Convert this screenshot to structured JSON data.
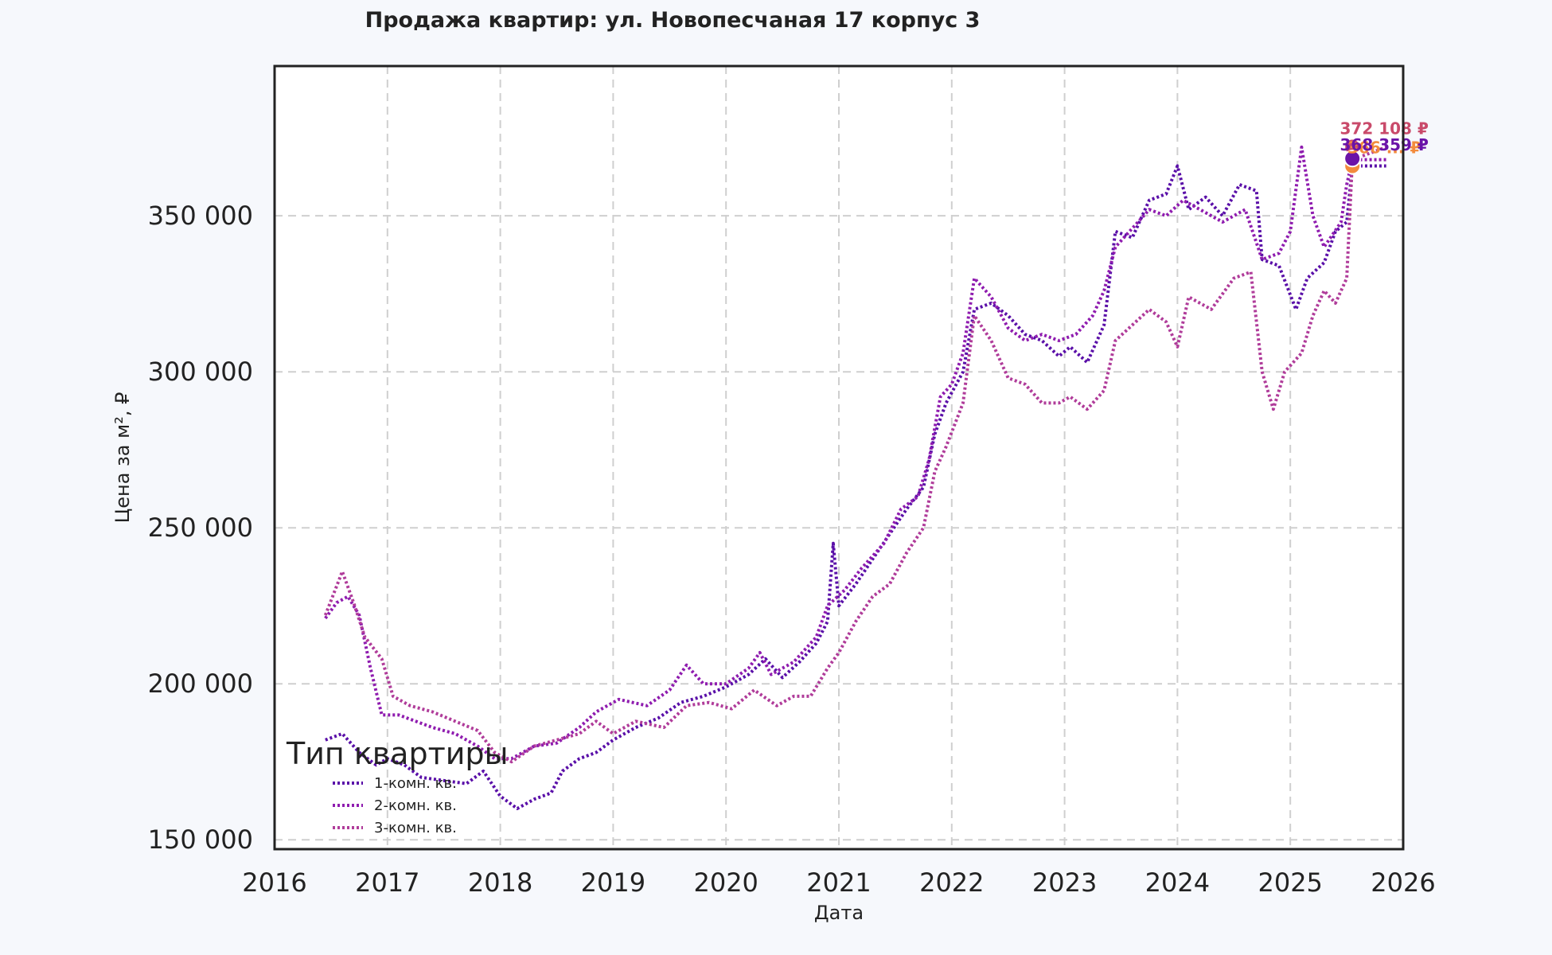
{
  "chart_data": {
    "type": "line",
    "title": "Продажа квартир: ул. Новопесчаная 17 корпус 3",
    "xlabel": "Дата",
    "ylabel": "Цена за м², ₽",
    "xlim": [
      2016,
      2026
    ],
    "ylim": [
      147000,
      398000
    ],
    "x_ticks": [
      "2016",
      "2017",
      "2018",
      "2019",
      "2020",
      "2021",
      "2022",
      "2023",
      "2024",
      "2025",
      "2026"
    ],
    "y_ticks": [
      {
        "value": 150000,
        "label": "150 000"
      },
      {
        "value": 200000,
        "label": "200 000"
      },
      {
        "value": 250000,
        "label": "250 000"
      },
      {
        "value": 300000,
        "label": "300 000"
      },
      {
        "value": 350000,
        "label": "350 000"
      }
    ],
    "grid": true,
    "legend": {
      "title": "Тип квартиры",
      "position": "lower-left"
    },
    "series": [
      {
        "name": "1-комн. кв.",
        "color": "#5a0fa8",
        "points": [
          [
            2016.45,
            182000
          ],
          [
            2016.6,
            184000
          ],
          [
            2016.75,
            178000
          ],
          [
            2016.9,
            174000
          ],
          [
            2017.0,
            176000
          ],
          [
            2017.15,
            174000
          ],
          [
            2017.3,
            170000
          ],
          [
            2017.5,
            169000
          ],
          [
            2017.7,
            168000
          ],
          [
            2017.85,
            172000
          ],
          [
            2018.0,
            164000
          ],
          [
            2018.15,
            160000
          ],
          [
            2018.3,
            163000
          ],
          [
            2018.45,
            165000
          ],
          [
            2018.55,
            172000
          ],
          [
            2018.7,
            176000
          ],
          [
            2018.85,
            178000
          ],
          [
            2019.0,
            182000
          ],
          [
            2019.2,
            186000
          ],
          [
            2019.4,
            189000
          ],
          [
            2019.6,
            194000
          ],
          [
            2019.8,
            196000
          ],
          [
            2020.0,
            199000
          ],
          [
            2020.2,
            203000
          ],
          [
            2020.35,
            208000
          ],
          [
            2020.5,
            202000
          ],
          [
            2020.65,
            207000
          ],
          [
            2020.8,
            213000
          ],
          [
            2020.9,
            220000
          ],
          [
            2020.95,
            245000
          ],
          [
            2021.0,
            225000
          ],
          [
            2021.15,
            232000
          ],
          [
            2021.3,
            240000
          ],
          [
            2021.45,
            248000
          ],
          [
            2021.6,
            256000
          ],
          [
            2021.75,
            263000
          ],
          [
            2021.85,
            280000
          ],
          [
            2021.95,
            290000
          ],
          [
            2022.1,
            300000
          ],
          [
            2022.2,
            320000
          ],
          [
            2022.35,
            322000
          ],
          [
            2022.5,
            318000
          ],
          [
            2022.65,
            312000
          ],
          [
            2022.8,
            310000
          ],
          [
            2022.95,
            305000
          ],
          [
            2023.05,
            308000
          ],
          [
            2023.2,
            303000
          ],
          [
            2023.35,
            315000
          ],
          [
            2023.45,
            345000
          ],
          [
            2023.6,
            343000
          ],
          [
            2023.75,
            355000
          ],
          [
            2023.9,
            357000
          ],
          [
            2024.0,
            366000
          ],
          [
            2024.1,
            352000
          ],
          [
            2024.25,
            356000
          ],
          [
            2024.4,
            350000
          ],
          [
            2024.55,
            360000
          ],
          [
            2024.7,
            358000
          ],
          [
            2024.75,
            336000
          ],
          [
            2024.9,
            334000
          ],
          [
            2025.05,
            320000
          ],
          [
            2025.15,
            330000
          ],
          [
            2025.3,
            335000
          ],
          [
            2025.4,
            345000
          ],
          [
            2025.5,
            348000
          ],
          [
            2025.55,
            366000
          ],
          [
            2025.85,
            366000
          ]
        ]
      },
      {
        "name": "2-комн. кв.",
        "color": "#8f1caf",
        "points": [
          [
            2016.45,
            221000
          ],
          [
            2016.55,
            226000
          ],
          [
            2016.65,
            228000
          ],
          [
            2016.75,
            222000
          ],
          [
            2016.85,
            205000
          ],
          [
            2016.95,
            190000
          ],
          [
            2017.1,
            190000
          ],
          [
            2017.25,
            188000
          ],
          [
            2017.4,
            186000
          ],
          [
            2017.6,
            184000
          ],
          [
            2017.8,
            180000
          ],
          [
            2017.95,
            176000
          ],
          [
            2018.1,
            176000
          ],
          [
            2018.3,
            180000
          ],
          [
            2018.5,
            181000
          ],
          [
            2018.7,
            186000
          ],
          [
            2018.85,
            191000
          ],
          [
            2019.05,
            195000
          ],
          [
            2019.3,
            193000
          ],
          [
            2019.5,
            198000
          ],
          [
            2019.65,
            206000
          ],
          [
            2019.8,
            200000
          ],
          [
            2020.0,
            200000
          ],
          [
            2020.2,
            205000
          ],
          [
            2020.3,
            210000
          ],
          [
            2020.4,
            203000
          ],
          [
            2020.6,
            207000
          ],
          [
            2020.8,
            215000
          ],
          [
            2020.9,
            225000
          ],
          [
            2021.05,
            230000
          ],
          [
            2021.2,
            237000
          ],
          [
            2021.4,
            245000
          ],
          [
            2021.55,
            256000
          ],
          [
            2021.7,
            260000
          ],
          [
            2021.8,
            272000
          ],
          [
            2021.9,
            292000
          ],
          [
            2022.0,
            296000
          ],
          [
            2022.1,
            306000
          ],
          [
            2022.2,
            330000
          ],
          [
            2022.35,
            324000
          ],
          [
            2022.5,
            314000
          ],
          [
            2022.65,
            310000
          ],
          [
            2022.8,
            312000
          ],
          [
            2022.95,
            310000
          ],
          [
            2023.1,
            312000
          ],
          [
            2023.25,
            318000
          ],
          [
            2023.35,
            326000
          ],
          [
            2023.45,
            340000
          ],
          [
            2023.6,
            346000
          ],
          [
            2023.75,
            352000
          ],
          [
            2023.9,
            350000
          ],
          [
            2024.05,
            355000
          ],
          [
            2024.2,
            352000
          ],
          [
            2024.4,
            348000
          ],
          [
            2024.6,
            352000
          ],
          [
            2024.75,
            336000
          ],
          [
            2024.9,
            338000
          ],
          [
            2025.0,
            345000
          ],
          [
            2025.1,
            372000
          ],
          [
            2025.2,
            350000
          ],
          [
            2025.3,
            340000
          ],
          [
            2025.45,
            348000
          ],
          [
            2025.5,
            360000
          ],
          [
            2025.55,
            368000
          ],
          [
            2025.85,
            368000
          ]
        ]
      },
      {
        "name": "3-комн. кв.",
        "color": "#b03c9a",
        "points": [
          [
            2016.45,
            222000
          ],
          [
            2016.6,
            236000
          ],
          [
            2016.7,
            226000
          ],
          [
            2016.8,
            215000
          ],
          [
            2016.95,
            208000
          ],
          [
            2017.05,
            196000
          ],
          [
            2017.2,
            193000
          ],
          [
            2017.4,
            191000
          ],
          [
            2017.6,
            188000
          ],
          [
            2017.8,
            185000
          ],
          [
            2017.95,
            178000
          ],
          [
            2018.1,
            175000
          ],
          [
            2018.3,
            180000
          ],
          [
            2018.5,
            182000
          ],
          [
            2018.7,
            184000
          ],
          [
            2018.85,
            188000
          ],
          [
            2019.0,
            184000
          ],
          [
            2019.2,
            188000
          ],
          [
            2019.45,
            186000
          ],
          [
            2019.65,
            193000
          ],
          [
            2019.85,
            194000
          ],
          [
            2020.05,
            192000
          ],
          [
            2020.25,
            198000
          ],
          [
            2020.45,
            193000
          ],
          [
            2020.6,
            196000
          ],
          [
            2020.75,
            196000
          ],
          [
            2020.9,
            205000
          ],
          [
            2021.0,
            210000
          ],
          [
            2021.15,
            220000
          ],
          [
            2021.3,
            228000
          ],
          [
            2021.45,
            232000
          ],
          [
            2021.6,
            242000
          ],
          [
            2021.75,
            250000
          ],
          [
            2021.85,
            268000
          ],
          [
            2021.95,
            276000
          ],
          [
            2022.1,
            290000
          ],
          [
            2022.2,
            318000
          ],
          [
            2022.35,
            310000
          ],
          [
            2022.5,
            298000
          ],
          [
            2022.65,
            296000
          ],
          [
            2022.8,
            290000
          ],
          [
            2022.95,
            290000
          ],
          [
            2023.05,
            292000
          ],
          [
            2023.2,
            288000
          ],
          [
            2023.35,
            294000
          ],
          [
            2023.45,
            310000
          ],
          [
            2023.6,
            315000
          ],
          [
            2023.75,
            320000
          ],
          [
            2023.9,
            316000
          ],
          [
            2024.0,
            308000
          ],
          [
            2024.1,
            324000
          ],
          [
            2024.3,
            320000
          ],
          [
            2024.5,
            330000
          ],
          [
            2024.65,
            332000
          ],
          [
            2024.75,
            300000
          ],
          [
            2024.85,
            288000
          ],
          [
            2024.95,
            300000
          ],
          [
            2025.1,
            306000
          ],
          [
            2025.2,
            318000
          ],
          [
            2025.3,
            326000
          ],
          [
            2025.4,
            322000
          ],
          [
            2025.5,
            330000
          ],
          [
            2025.55,
            368000
          ],
          [
            2025.85,
            372000
          ]
        ]
      }
    ],
    "end_points": [
      {
        "x": 2025.55,
        "y": 372108,
        "label": "372 108 ₽",
        "color": "#c94a6a"
      },
      {
        "x": 2025.55,
        "y": 366000,
        "label": "366 ... ₽",
        "color": "#f38b3c"
      },
      {
        "x": 2025.55,
        "y": 368359,
        "label": "368 359 ₽",
        "color": "#6a13a8"
      }
    ]
  }
}
